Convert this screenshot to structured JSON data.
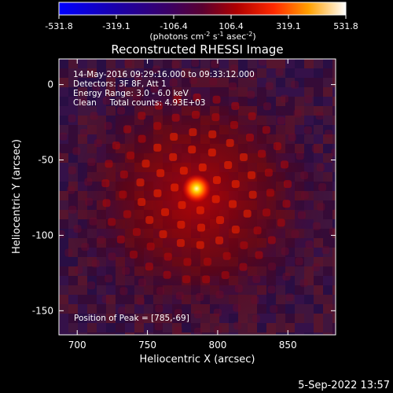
{
  "colorbar": {
    "ticks": [
      "-531.8",
      "-319.1",
      "-106.4",
      "106.4",
      "319.1",
      "531.8"
    ],
    "unit_prefix": "(photons cm",
    "unit_exp1": "-2",
    "unit_mid": " s",
    "unit_exp2": "-1",
    "unit_mid2": " asec",
    "unit_exp3": "-2",
    "unit_suffix": ")",
    "range": [
      -531.8,
      531.8
    ]
  },
  "chart_data": {
    "type": "heatmap",
    "title": "Reconstructed RHESSI Image",
    "xlabel": "Heliocentric X (arcsec)",
    "ylabel": "Heliocentric Y (arcsec)",
    "xlim": [
      687,
      884
    ],
    "ylim": [
      -166,
      17
    ],
    "xticks": [
      700,
      750,
      800,
      850
    ],
    "yticks": [
      0,
      -50,
      -100,
      -150
    ],
    "peak": {
      "x": 785,
      "y": -69
    },
    "info_lines": [
      "14-May-2016 09:29:16.000 to 09:33:12.000",
      "Detectors: 3F 8F, Att 1",
      "Energy Range: 3.0 - 6.0 keV",
      "Clean     Total counts: 4.93E+03"
    ],
    "peak_text": "Position of Peak = [785,-69]"
  },
  "footer": {
    "date": "5-Sep-2022 13:57"
  }
}
